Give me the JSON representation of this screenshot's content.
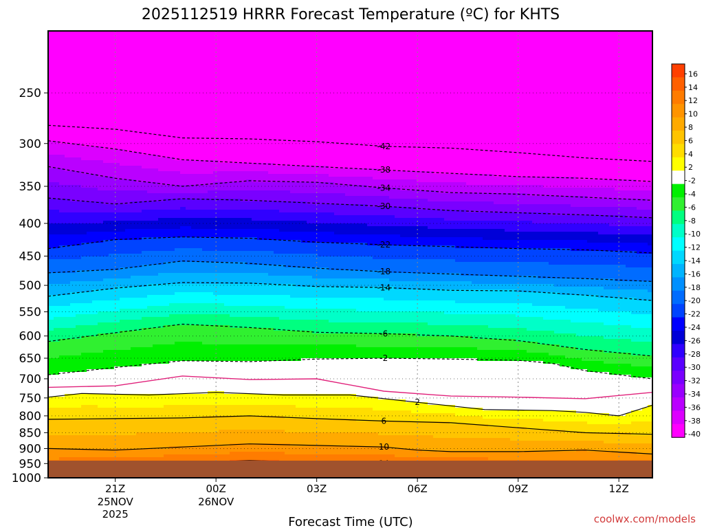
{
  "title": "2025112519 HRRR Forecast Temperature (ºC) for KHTS",
  "credit": "coolwx.com/models",
  "chart_data": {
    "type": "heatmap",
    "title": "2025112519 HRRR Forecast Temperature (ºC) for KHTS",
    "xlabel": "Forecast Time (UTC)",
    "ylabel": "",
    "y_scale": "log",
    "ylim": [
      1000,
      200
    ],
    "xlim": [
      "2025-11-25 19Z",
      "2025-11-26 13Z"
    ],
    "grid": true,
    "y_ticks": [
      250,
      300,
      350,
      400,
      450,
      500,
      550,
      600,
      650,
      700,
      750,
      800,
      850,
      900,
      950,
      1000
    ],
    "x_ticks": [
      {
        "label": "21Z",
        "hour": 2,
        "date": "25NOV",
        "year": "2025"
      },
      {
        "label": "00Z",
        "hour": 5,
        "date": "26NOV",
        "year": ""
      },
      {
        "label": "03Z",
        "hour": 8,
        "date": "",
        "year": ""
      },
      {
        "label": "06Z",
        "hour": 11,
        "date": "",
        "year": ""
      },
      {
        "label": "09Z",
        "hour": 14,
        "date": "",
        "year": ""
      },
      {
        "label": "12Z",
        "hour": 17,
        "date": "",
        "year": ""
      }
    ],
    "colorbar_labels": [
      16,
      14,
      12,
      10,
      8,
      6,
      4,
      2,
      -2,
      -4,
      -6,
      -8,
      -10,
      -12,
      -14,
      -16,
      -18,
      -20,
      -22,
      -24,
      -26,
      -28,
      -30,
      -32,
      -34,
      -36,
      -38,
      -40
    ],
    "colorbar_colors": [
      "#ff4000",
      "#ff6000",
      "#ff7c00",
      "#ff9400",
      "#ffaa00",
      "#ffc400",
      "#ffdd00",
      "#ffff00",
      "#ffffff",
      "#00f000",
      "#30f030",
      "#00ff80",
      "#00ffc8",
      "#00ffff",
      "#00d8ff",
      "#00b4ff",
      "#0090ff",
      "#006cff",
      "#0044ff",
      "#0000ff",
      "#0000d8",
      "#3000ff",
      "#5a00ff",
      "#7a00ff",
      "#9a00ff",
      "#ba00ff",
      "#dc00ff",
      "#ff00ff"
    ],
    "ground_color": "#a0522d",
    "series": [
      {
        "label": "14",
        "style": "solid",
        "points": [
          [
            0,
            968
          ],
          [
            2,
            958
          ],
          [
            4,
            947
          ],
          [
            6,
            940
          ],
          [
            8,
            945
          ],
          [
            10,
            950
          ],
          [
            12,
            955
          ],
          [
            14,
            958
          ],
          [
            16,
            962
          ],
          [
            18,
            965
          ]
        ]
      },
      {
        "label": "10",
        "style": "solid",
        "points": [
          [
            0,
            900
          ],
          [
            2,
            905
          ],
          [
            4,
            895
          ],
          [
            6,
            885
          ],
          [
            8,
            890
          ],
          [
            10,
            895
          ],
          [
            11,
            905
          ],
          [
            12,
            910
          ],
          [
            14,
            910
          ],
          [
            16,
            905
          ],
          [
            18,
            918
          ]
        ]
      },
      {
        "label": "6",
        "style": "solid",
        "points": [
          [
            0,
            810
          ],
          [
            2,
            808
          ],
          [
            4,
            806
          ],
          [
            6,
            800
          ],
          [
            8,
            808
          ],
          [
            10,
            815
          ],
          [
            12,
            820
          ],
          [
            14,
            835
          ],
          [
            16,
            850
          ],
          [
            18,
            855
          ]
        ]
      },
      {
        "label": "2",
        "style": "solid",
        "points": [
          [
            0,
            748
          ],
          [
            1,
            738
          ],
          [
            3,
            742
          ],
          [
            5,
            735
          ],
          [
            7,
            742
          ],
          [
            9,
            742
          ],
          [
            11,
            762
          ],
          [
            13,
            782
          ],
          [
            15,
            785
          ],
          [
            16,
            790
          ],
          [
            17,
            800
          ],
          [
            18,
            770
          ]
        ]
      },
      {
        "label": "",
        "style": "freezing",
        "points": [
          [
            0,
            722
          ],
          [
            2,
            718
          ],
          [
            4,
            693
          ],
          [
            6,
            702
          ],
          [
            8,
            700
          ],
          [
            10,
            732
          ],
          [
            12,
            745
          ],
          [
            14,
            748
          ],
          [
            16,
            752
          ],
          [
            18,
            735
          ]
        ]
      },
      {
        "label": "-2",
        "style": "dashed",
        "points": [
          [
            0,
            690
          ],
          [
            2,
            672
          ],
          [
            4,
            656
          ],
          [
            6,
            658
          ],
          [
            8,
            652
          ],
          [
            10,
            650
          ],
          [
            12,
            652
          ],
          [
            14,
            655
          ],
          [
            15,
            662
          ],
          [
            16,
            680
          ],
          [
            18,
            700
          ]
        ]
      },
      {
        "label": "-6",
        "style": "dashed",
        "points": [
          [
            0,
            612
          ],
          [
            2,
            593
          ],
          [
            4,
            575
          ],
          [
            6,
            582
          ],
          [
            8,
            592
          ],
          [
            10,
            595
          ],
          [
            12,
            600
          ],
          [
            14,
            610
          ],
          [
            16,
            630
          ],
          [
            18,
            645
          ]
        ]
      },
      {
        "label": "-14",
        "style": "dashed",
        "points": [
          [
            0,
            520
          ],
          [
            2,
            505
          ],
          [
            4,
            495
          ],
          [
            6,
            496
          ],
          [
            8,
            502
          ],
          [
            10,
            504
          ],
          [
            12,
            509
          ],
          [
            14,
            510
          ],
          [
            16,
            518
          ],
          [
            18,
            528
          ]
        ]
      },
      {
        "label": "-18",
        "style": "dashed",
        "points": [
          [
            0,
            478
          ],
          [
            2,
            472
          ],
          [
            4,
            458
          ],
          [
            6,
            462
          ],
          [
            8,
            470
          ],
          [
            10,
            476
          ],
          [
            12,
            480
          ],
          [
            14,
            484
          ],
          [
            16,
            488
          ],
          [
            18,
            493
          ]
        ]
      },
      {
        "label": "-22",
        "style": "dashed",
        "points": [
          [
            0,
            438
          ],
          [
            2,
            424
          ],
          [
            4,
            420
          ],
          [
            6,
            422
          ],
          [
            8,
            428
          ],
          [
            10,
            432
          ],
          [
            12,
            435
          ],
          [
            14,
            438
          ],
          [
            16,
            440
          ],
          [
            18,
            445
          ]
        ]
      },
      {
        "label": "-30",
        "style": "dashed",
        "points": [
          [
            0,
            365
          ],
          [
            2,
            373
          ],
          [
            4,
            366
          ],
          [
            6,
            368
          ],
          [
            8,
            372
          ],
          [
            10,
            376
          ],
          [
            12,
            382
          ],
          [
            14,
            385
          ],
          [
            16,
            388
          ],
          [
            18,
            392
          ]
        ]
      },
      {
        "label": "-34",
        "style": "dashed",
        "points": [
          [
            0,
            326
          ],
          [
            2,
            340
          ],
          [
            4,
            350
          ],
          [
            6,
            343
          ],
          [
            8,
            345
          ],
          [
            10,
            352
          ],
          [
            12,
            358
          ],
          [
            14,
            360
          ],
          [
            16,
            364
          ],
          [
            18,
            368
          ]
        ]
      },
      {
        "label": "-38",
        "style": "dashed",
        "points": [
          [
            0,
            297
          ],
          [
            2,
            306
          ],
          [
            4,
            318
          ],
          [
            6,
            322
          ],
          [
            8,
            326
          ],
          [
            10,
            330
          ],
          [
            12,
            334
          ],
          [
            14,
            338
          ],
          [
            16,
            340
          ],
          [
            18,
            344
          ]
        ]
      },
      {
        "label": "-42",
        "style": "dashed",
        "points": [
          [
            0,
            281
          ],
          [
            2,
            285
          ],
          [
            4,
            294
          ],
          [
            6,
            295
          ],
          [
            8,
            298
          ],
          [
            10,
            303
          ],
          [
            12,
            305
          ],
          [
            14,
            310
          ],
          [
            16,
            316
          ],
          [
            18,
            320
          ]
        ]
      }
    ]
  }
}
